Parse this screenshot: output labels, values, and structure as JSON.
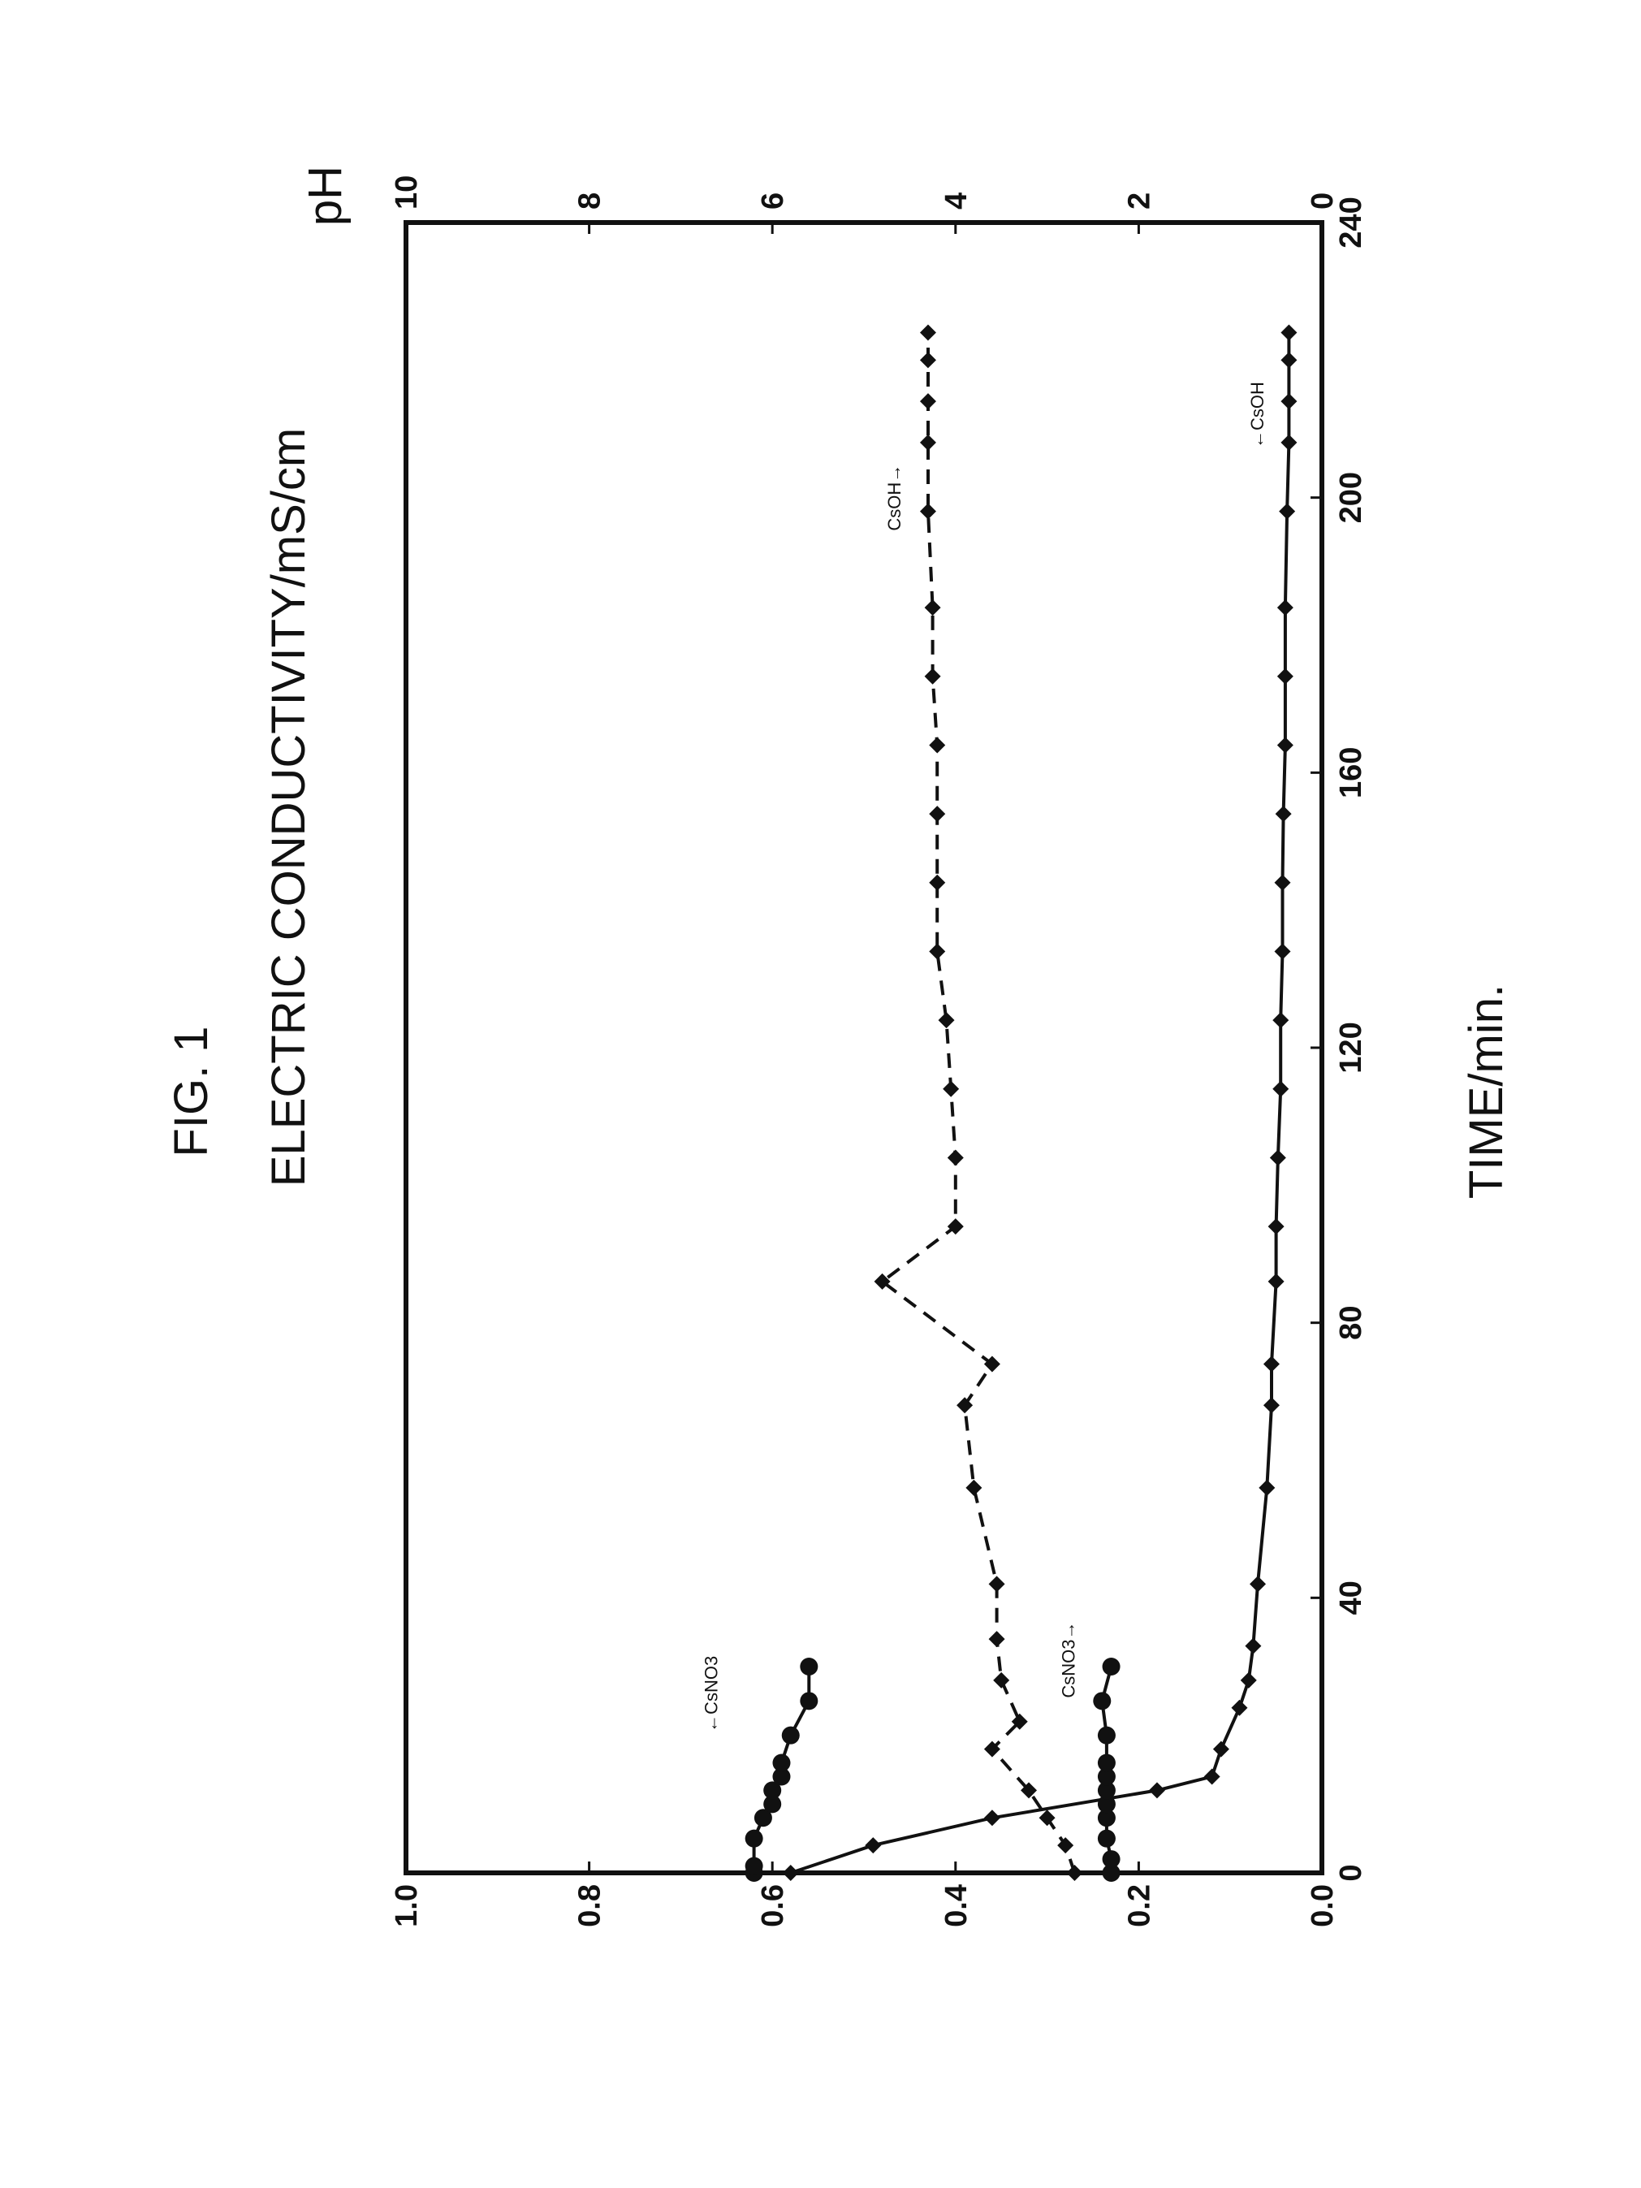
{
  "figure": {
    "title": "FIG. 1",
    "left_axis_label": "ELECTRIC CONDUCTIVITY/mS/cm",
    "right_axis_label": "pH",
    "x_axis_label": "TIME/min."
  },
  "chart_data": {
    "type": "line",
    "xlabel": "TIME/min.",
    "ylabel": "ELECTRIC CONDUCTIVITY/mS/cm",
    "y2label": "pH",
    "xlim": [
      0,
      240
    ],
    "ylim": [
      0,
      1.0
    ],
    "y2lim": [
      0,
      10
    ],
    "x_ticks": [
      "0",
      "40",
      "80",
      "120",
      "160",
      "200",
      "240"
    ],
    "y_ticks": [
      "0.0",
      "0.2",
      "0.4",
      "0.6",
      "0.8",
      "1.0"
    ],
    "y2_ticks": [
      "0",
      "2",
      "4",
      "6",
      "8",
      "10"
    ],
    "grid": false,
    "series": [
      {
        "name": "CsOH",
        "axis": "left",
        "style": "solid",
        "marker": "diamond",
        "points": [
          [
            0,
            0.58
          ],
          [
            4,
            0.49
          ],
          [
            8,
            0.36
          ],
          [
            12,
            0.18
          ],
          [
            14,
            0.12
          ],
          [
            18,
            0.11
          ],
          [
            24,
            0.09
          ],
          [
            28,
            0.08
          ],
          [
            33,
            0.075
          ],
          [
            42,
            0.07
          ],
          [
            56,
            0.06
          ],
          [
            68,
            0.055
          ],
          [
            74,
            0.055
          ],
          [
            86,
            0.05
          ],
          [
            94,
            0.05
          ],
          [
            104,
            0.048
          ],
          [
            114,
            0.045
          ],
          [
            124,
            0.045
          ],
          [
            134,
            0.043
          ],
          [
            144,
            0.043
          ],
          [
            154,
            0.042
          ],
          [
            164,
            0.04
          ],
          [
            174,
            0.04
          ],
          [
            184,
            0.04
          ],
          [
            198,
            0.038
          ],
          [
            208,
            0.036
          ],
          [
            214,
            0.036
          ],
          [
            220,
            0.036
          ],
          [
            224,
            0.036
          ]
        ]
      },
      {
        "name": "CsNO3",
        "axis": "left",
        "style": "solid",
        "marker": "circle",
        "points": [
          [
            0,
            0.62
          ],
          [
            1,
            0.62
          ],
          [
            5,
            0.62
          ],
          [
            8,
            0.61
          ],
          [
            10,
            0.6
          ],
          [
            12,
            0.6
          ],
          [
            14,
            0.59
          ],
          [
            16,
            0.59
          ],
          [
            20,
            0.58
          ],
          [
            25,
            0.56
          ],
          [
            30,
            0.56
          ]
        ]
      },
      {
        "name": "CsOH",
        "axis": "right",
        "style": "dashed",
        "marker": "diamond",
        "points": [
          [
            0,
            2.7
          ],
          [
            4,
            2.8
          ],
          [
            8,
            3.0
          ],
          [
            12,
            3.2
          ],
          [
            18,
            3.6
          ],
          [
            22,
            3.3
          ],
          [
            28,
            3.5
          ],
          [
            34,
            3.55
          ],
          [
            42,
            3.55
          ],
          [
            56,
            3.8
          ],
          [
            68,
            3.9
          ],
          [
            74,
            3.6
          ],
          [
            86,
            4.8
          ],
          [
            94,
            4.0
          ],
          [
            104,
            4.0
          ],
          [
            114,
            4.05
          ],
          [
            124,
            4.1
          ],
          [
            134,
            4.2
          ],
          [
            144,
            4.2
          ],
          [
            154,
            4.2
          ],
          [
            164,
            4.2
          ],
          [
            174,
            4.25
          ],
          [
            184,
            4.25
          ],
          [
            198,
            4.3
          ],
          [
            208,
            4.3
          ],
          [
            214,
            4.3
          ],
          [
            220,
            4.3
          ],
          [
            224,
            4.3
          ]
        ]
      },
      {
        "name": "CsNO3",
        "axis": "right",
        "style": "solid",
        "marker": "circle",
        "points": [
          [
            0,
            2.3
          ],
          [
            2,
            2.3
          ],
          [
            5,
            2.35
          ],
          [
            8,
            2.35
          ],
          [
            10,
            2.35
          ],
          [
            12,
            2.35
          ],
          [
            14,
            2.35
          ],
          [
            16,
            2.35
          ],
          [
            20,
            2.35
          ],
          [
            25,
            2.4
          ],
          [
            30,
            2.3
          ]
        ]
      }
    ],
    "annotations": [
      {
        "text": "←CsNO3",
        "at": [
          26,
          0.66
        ],
        "axis": "left"
      },
      {
        "text": "CsNO3→",
        "at": [
          31,
          0.27
        ],
        "axis": "left"
      },
      {
        "text": "CsOH→",
        "at": [
          200,
          0.46
        ],
        "axis": "left"
      },
      {
        "text": "←CsOH",
        "at": [
          212,
          0.064
        ],
        "axis": "left"
      }
    ]
  }
}
